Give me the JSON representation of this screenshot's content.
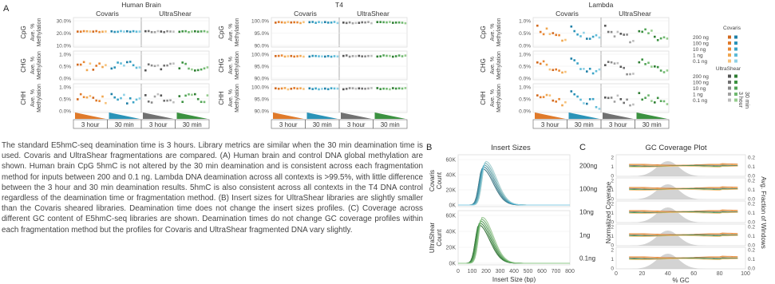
{
  "panel_letters": {
    "a": "A",
    "b": "B",
    "c": "C"
  },
  "colors": {
    "covaris_orange": [
      "#d2691e",
      "#e07a2a",
      "#ea8a35",
      "#f0a64f",
      "#f7c27b"
    ],
    "covaris_teal": [
      "#1f7fa6",
      "#2a93b8",
      "#3aa3c6",
      "#5ebbd8",
      "#8fd1e6"
    ],
    "ultra_gray": [
      "#555555",
      "#707070",
      "#8a8a8a",
      "#a0a0a0",
      "#bdbdbd"
    ],
    "ultra_green": [
      "#2e7d32",
      "#3b9140",
      "#52a456",
      "#6fb86f",
      "#95cc8d"
    ],
    "grid": "#dddddd",
    "frame": "#999999"
  },
  "panelA": {
    "organisms": [
      {
        "title": "Human Brain",
        "ticks": {
          "CpG": [
            "30.0%",
            "20.0%",
            "10.0%"
          ],
          "CHG": [
            "1.0%",
            "0.5%",
            "0.0%"
          ],
          "CHH": [
            "1.0%",
            "0.5%",
            "0.0%"
          ]
        }
      },
      {
        "title": "T4",
        "ticks": {
          "CpG": [
            "100.0%",
            "95.0%",
            "90.0%"
          ],
          "CHG": [
            "100.0%",
            "95.0%",
            "90.0%"
          ],
          "CHH": [
            "100.0%",
            "95.0%",
            "90.0%"
          ]
        }
      },
      {
        "title": "Lambda",
        "ticks": {
          "CpG": [
            "1.0%",
            "0.5%",
            "0.0%"
          ],
          "CHG": [
            "1.0%",
            "0.5%",
            "0.0%"
          ],
          "CHH": [
            "1.0%",
            "0.5%",
            "0.0%"
          ]
        }
      }
    ],
    "methods": [
      "Covaris",
      "UltraShear"
    ],
    "contexts": [
      "CpG",
      "CHG",
      "CHH"
    ],
    "ylabel": "Ave. %\nMethylation",
    "ylabel_lines": [
      "Ave. %",
      "Methylation"
    ],
    "time_labels": [
      "3 hour",
      "30 min",
      "3 hour",
      "30 min"
    ],
    "legend": {
      "covaris_title": "Covaris",
      "ultra_title": "UltraShear",
      "inputs": [
        "200 ng",
        "100 ng",
        "10 ng",
        "1 ng",
        "0.1 ng"
      ],
      "time_30": "30 min",
      "time_3": "3 hour"
    }
  },
  "caption": "The standard E5hmC-seq deamination time is 3 hours. Library metrics are similar when the 30 min deamination time is used. Covaris and UltraShear fragmentations are compared. (A) Human brain and control DNA global methylation are shown. Human brain CpG 5hmC is not altered by the 30 min deamination and is consistent across each fragmentation method for inputs between 200 and 0.1 ng. Lambda DNA deamination across all contexts is >99.5%, with little difference between the 3 hour and 30 min deamination results. 5hmC is also consistent across all contexts in the T4 DNA control regardless of the deamination time or fragmentation method. (B) Insert sizes for UltraShear libraries are slightly smaller than the Covaris sheared libraries. Deamination time does not change the insert sizes profiles. (C) Coverage across different GC content of E5hmC-seq libraries are shown. Deamination times do not change GC coverage profiles within each fragmentation method but the profiles for Covaris and UltraShear fragmented DNA vary slightly.",
  "panelB": {
    "title": "Insert Sizes",
    "ylabels": [
      [
        "Covaris",
        "Count"
      ],
      [
        "UltraShear",
        "Count"
      ]
    ],
    "yticks": [
      "60K",
      "40K",
      "20K",
      "0K"
    ],
    "xticks": [
      "0",
      "100",
      "200",
      "300",
      "400",
      "500",
      "600",
      "700",
      "800"
    ],
    "xlabel": "Insert Size (bp)"
  },
  "panelC": {
    "title": "GC Coverage Plot",
    "rows": [
      "200ng",
      "100ng",
      "10ng",
      "1ng",
      "0.1ng"
    ],
    "left_ticks": [
      "2",
      "1",
      "0"
    ],
    "right_ticks": [
      "0.2",
      "0.1",
      "0.0"
    ],
    "ylabel_left": "Normalized Coverage",
    "ylabel_right": "Avg. Fraction of Windows",
    "xticks": [
      "0",
      "20",
      "40",
      "60",
      "80",
      "100"
    ],
    "xlabel": "% GC"
  }
}
